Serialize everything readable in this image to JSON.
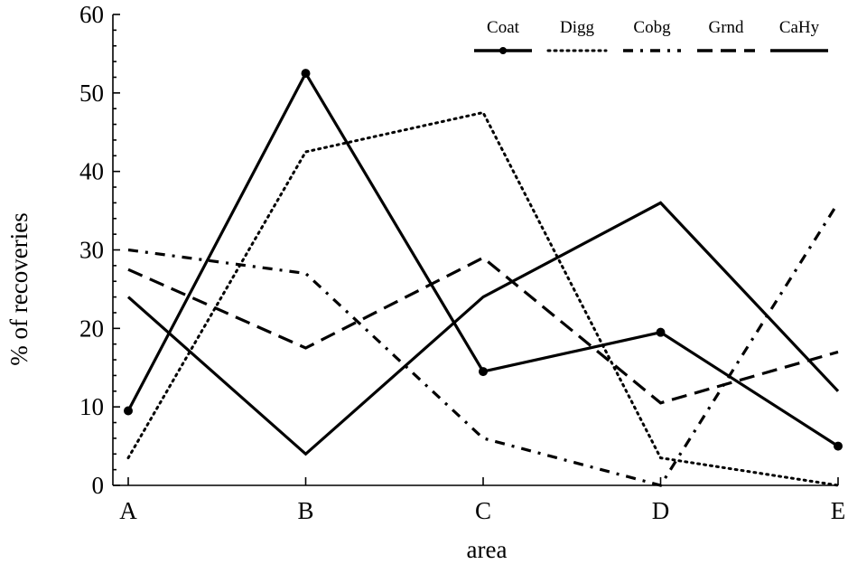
{
  "chart_data": {
    "type": "line",
    "xlabel": "area",
    "ylabel": "% of recoveries",
    "categories": [
      "A",
      "B",
      "C",
      "D",
      "E"
    ],
    "ylim": [
      0,
      60
    ],
    "yticks": [
      0,
      10,
      20,
      30,
      40,
      50,
      60
    ],
    "grid": false,
    "legend_position": "top-right",
    "series": [
      {
        "name": "Coat",
        "values": [
          9.5,
          52.5,
          14.5,
          19.5,
          5
        ],
        "style": "solid",
        "marker": "circle",
        "color": "#000000"
      },
      {
        "name": "Digg",
        "values": [
          3.5,
          42.5,
          47.5,
          3.5,
          0
        ],
        "style": "dotted",
        "marker": "none",
        "color": "#000000"
      },
      {
        "name": "Cobg",
        "values": [
          30,
          27,
          6,
          0,
          36
        ],
        "style": "dash-dot",
        "marker": "none",
        "color": "#000000"
      },
      {
        "name": "Grnd",
        "values": [
          27.5,
          17.5,
          29,
          10.5,
          17
        ],
        "style": "dashed",
        "marker": "none",
        "color": "#000000"
      },
      {
        "name": "CaHy",
        "values": [
          24,
          4,
          24,
          36,
          12
        ],
        "style": "solid",
        "marker": "none",
        "color": "#000000"
      }
    ]
  }
}
